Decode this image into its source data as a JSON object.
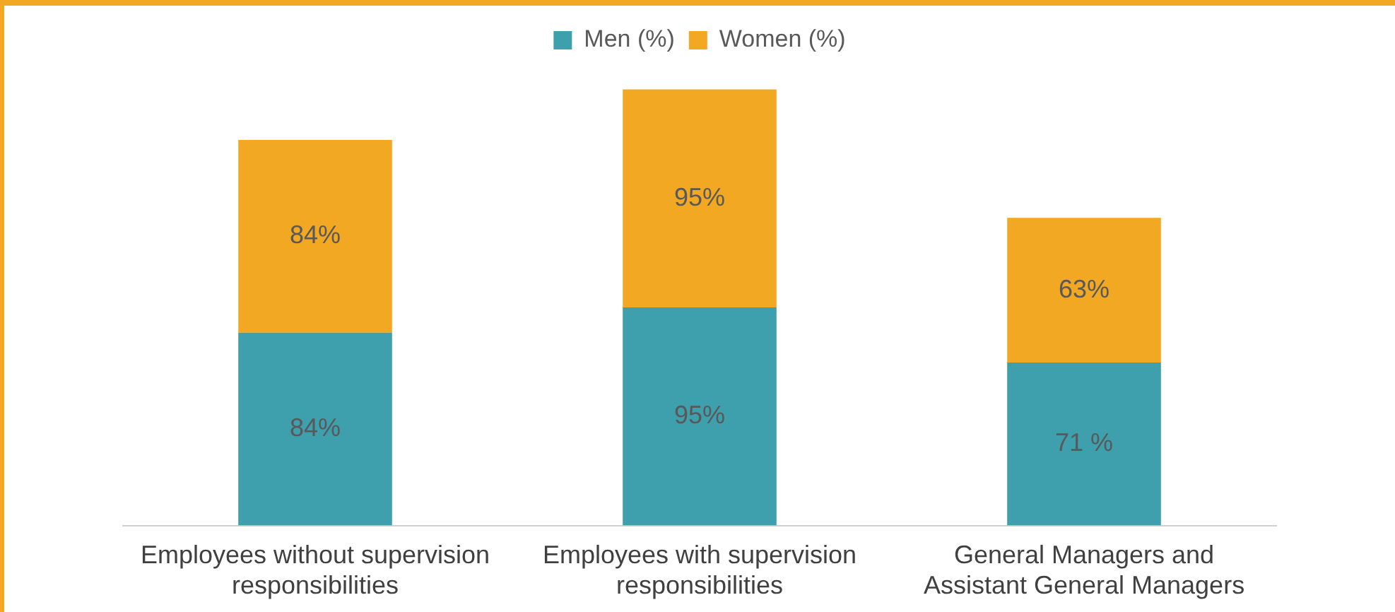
{
  "chart_data": {
    "type": "bar",
    "stacked": true,
    "legend": "top",
    "tick_labels": "x",
    "categories": [
      "Employees without supervision responsibilities",
      "Employees with supervision responsibilities",
      "General Managers and Assistant General Managers"
    ],
    "series": [
      {
        "name": "Men (%)",
        "color": "#3e9fad",
        "values": [
          84,
          95,
          71
        ],
        "value_labels": [
          "84%",
          "95%",
          "71 %"
        ]
      },
      {
        "name": "Women (%)",
        "color": "#f3a823",
        "values": [
          84,
          95,
          63
        ],
        "value_labels": [
          "84%",
          "95%",
          "63%"
        ]
      }
    ]
  }
}
